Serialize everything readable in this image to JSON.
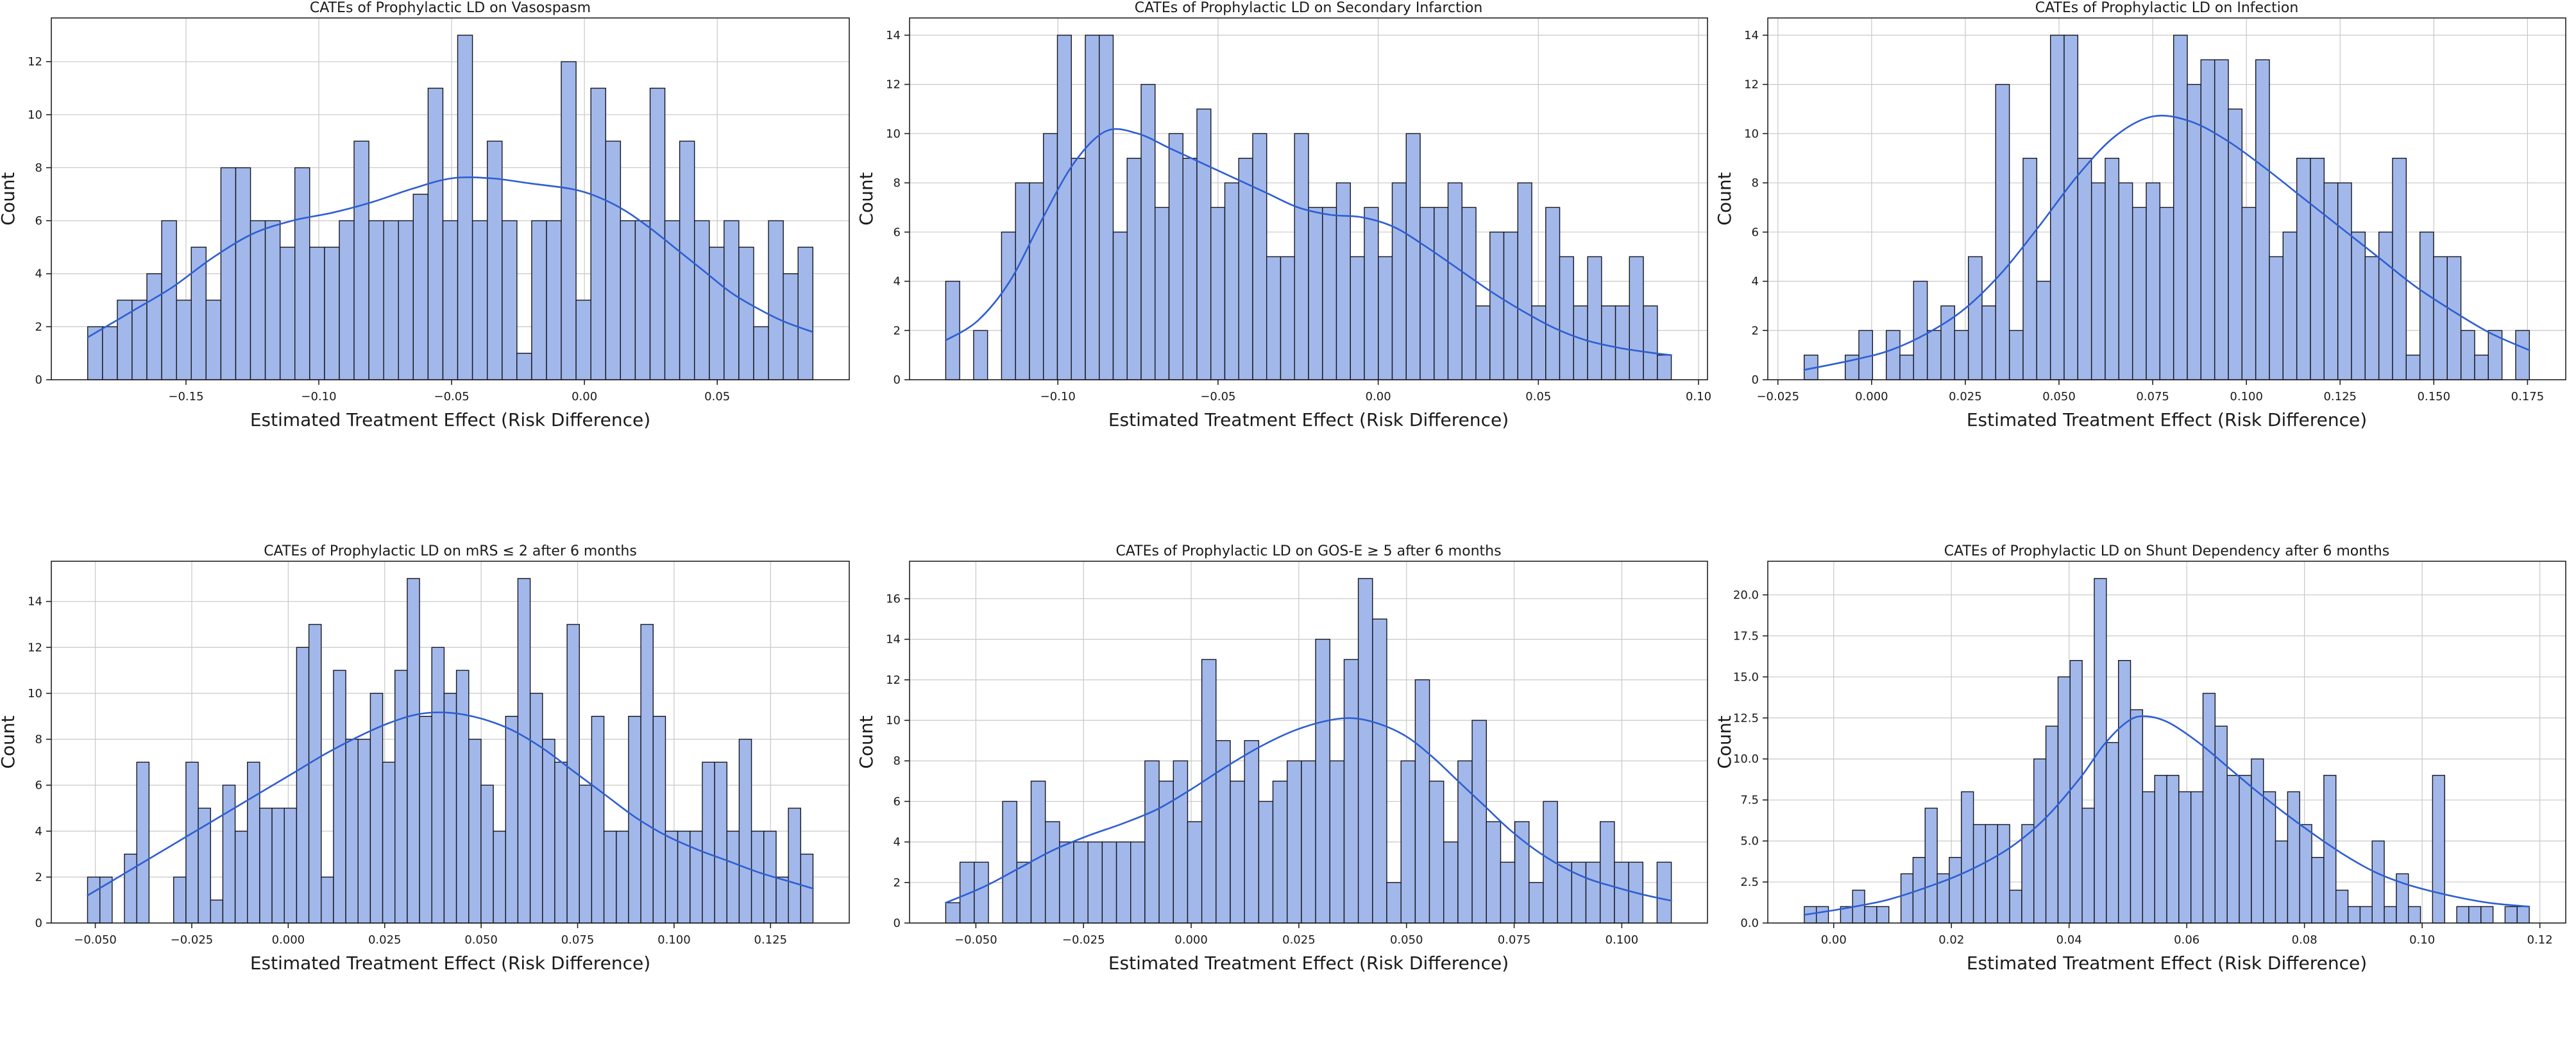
{
  "figure": {
    "background": "#ffffff",
    "bar_fill": "#a2b8ea",
    "bar_edge": "#16161f",
    "kde_color": "#2e5ed1",
    "grid_color": "#c8c8c8",
    "axis_color": "#222222",
    "tick_color": "#1a1a1a",
    "xlabel": "Estimated Treatment Effect (Risk Difference)",
    "ylabel": "Count"
  },
  "chart_data": [
    {
      "type": "bar",
      "subtype": "histogram-with-kde",
      "title": "CATEs of Prophylactic LD on Vasospasm",
      "xlabel": "Estimated Treatment Effect (Risk Difference)",
      "ylabel": "Count",
      "x_start": -0.187,
      "x_end": 0.086,
      "xlim": [
        -0.2007,
        0.0997
      ],
      "ylim": [
        0,
        13.65
      ],
      "grid": true,
      "values": [
        2,
        2,
        3,
        3,
        4,
        6,
        3,
        5,
        3,
        8,
        8,
        6,
        6,
        5,
        8,
        5,
        5,
        6,
        9,
        6,
        6,
        6,
        7,
        11,
        6,
        13,
        6,
        9,
        6,
        1,
        6,
        6,
        12,
        3,
        11,
        9,
        6,
        6,
        11,
        6,
        9,
        6,
        5,
        6,
        5,
        2,
        6,
        4,
        5
      ],
      "x_ticks": [
        -0.15,
        -0.1,
        -0.05,
        0.0,
        0.05
      ],
      "x_tick_labels": [
        "−0.15",
        "−0.10",
        "−0.05",
        "0.00",
        "0.05"
      ],
      "y_ticks": [
        0,
        2,
        4,
        6,
        8,
        10,
        12
      ],
      "y_tick_labels": [
        "0",
        "2",
        "4",
        "6",
        "8",
        "10",
        "12"
      ],
      "kde": [
        [
          -0.187,
          1.6
        ],
        [
          -0.17,
          2.6
        ],
        [
          -0.155,
          3.5
        ],
        [
          -0.14,
          4.6
        ],
        [
          -0.125,
          5.5
        ],
        [
          -0.11,
          6.0
        ],
        [
          -0.095,
          6.3
        ],
        [
          -0.08,
          6.7
        ],
        [
          -0.065,
          7.2
        ],
        [
          -0.05,
          7.6
        ],
        [
          -0.035,
          7.6
        ],
        [
          -0.02,
          7.4
        ],
        [
          -0.005,
          7.2
        ],
        [
          0.005,
          6.9
        ],
        [
          0.015,
          6.4
        ],
        [
          0.025,
          5.7
        ],
        [
          0.035,
          4.9
        ],
        [
          0.045,
          4.1
        ],
        [
          0.055,
          3.3
        ],
        [
          0.065,
          2.7
        ],
        [
          0.075,
          2.2
        ],
        [
          0.086,
          1.8
        ]
      ]
    },
    {
      "type": "bar",
      "subtype": "histogram-with-kde",
      "title": "CATEs of Prophylactic LD on Secondary Infarction",
      "xlabel": "Estimated Treatment Effect (Risk Difference)",
      "ylabel": "Count",
      "x_start": -0.135,
      "x_end": 0.0915,
      "xlim": [
        -0.1463,
        0.1028
      ],
      "ylim": [
        0,
        14.7
      ],
      "grid": true,
      "values": [
        4,
        0,
        2,
        0,
        6,
        8,
        8,
        10,
        14,
        9,
        14,
        14,
        6,
        9,
        12,
        7,
        10,
        9,
        11,
        7,
        8,
        9,
        10,
        5,
        5,
        10,
        7,
        7,
        8,
        5,
        7,
        5,
        8,
        10,
        7,
        7,
        8,
        7,
        3,
        6,
        6,
        8,
        3,
        7,
        5,
        3,
        5,
        3,
        3,
        5,
        3,
        1
      ],
      "x_ticks": [
        -0.1,
        -0.05,
        0.0,
        0.05,
        0.1
      ],
      "x_tick_labels": [
        "−0.10",
        "−0.05",
        "0.00",
        "0.05",
        "0.10"
      ],
      "y_ticks": [
        0,
        2,
        4,
        6,
        8,
        10,
        12,
        14
      ],
      "y_tick_labels": [
        "0",
        "2",
        "4",
        "6",
        "8",
        "10",
        "12",
        "14"
      ],
      "kde": [
        [
          -0.135,
          1.6
        ],
        [
          -0.125,
          2.4
        ],
        [
          -0.115,
          4.0
        ],
        [
          -0.105,
          6.5
        ],
        [
          -0.095,
          8.8
        ],
        [
          -0.085,
          10.1
        ],
        [
          -0.075,
          10.0
        ],
        [
          -0.065,
          9.4
        ],
        [
          -0.055,
          8.8
        ],
        [
          -0.045,
          8.2
        ],
        [
          -0.035,
          7.6
        ],
        [
          -0.025,
          7.0
        ],
        [
          -0.015,
          6.7
        ],
        [
          -0.005,
          6.6
        ],
        [
          0.005,
          6.2
        ],
        [
          0.015,
          5.4
        ],
        [
          0.025,
          4.5
        ],
        [
          0.035,
          3.6
        ],
        [
          0.045,
          2.8
        ],
        [
          0.055,
          2.1
        ],
        [
          0.065,
          1.6
        ],
        [
          0.075,
          1.3
        ],
        [
          0.085,
          1.1
        ],
        [
          0.0915,
          1.0
        ]
      ]
    },
    {
      "type": "bar",
      "subtype": "histogram-with-kde",
      "title": "CATEs of Prophylactic LD on Infection",
      "xlabel": "Estimated Treatment Effect (Risk Difference)",
      "ylabel": "Count",
      "x_start": -0.018,
      "x_end": 0.1755,
      "xlim": [
        -0.0277,
        0.1852
      ],
      "ylim": [
        0,
        14.7
      ],
      "grid": true,
      "values": [
        1,
        0,
        0,
        1,
        2,
        0,
        2,
        1,
        4,
        2,
        3,
        2,
        5,
        3,
        12,
        2,
        9,
        4,
        14,
        14,
        9,
        8,
        9,
        8,
        7,
        8,
        7,
        14,
        12,
        13,
        13,
        11,
        7,
        13,
        5,
        6,
        9,
        9,
        8,
        8,
        6,
        5,
        6,
        9,
        1,
        6,
        5,
        5,
        2,
        1,
        2,
        0,
        2
      ],
      "x_ticks": [
        -0.025,
        0.0,
        0.025,
        0.05,
        0.075,
        0.1,
        0.125,
        0.15,
        0.175
      ],
      "x_tick_labels": [
        "−0.025",
        "0.000",
        "0.025",
        "0.050",
        "0.075",
        "0.100",
        "0.125",
        "0.150",
        "0.175"
      ],
      "y_ticks": [
        0,
        2,
        4,
        6,
        8,
        10,
        12,
        14
      ],
      "y_tick_labels": [
        "0",
        "2",
        "4",
        "6",
        "8",
        "10",
        "12",
        "14"
      ],
      "kde": [
        [
          -0.018,
          0.4
        ],
        [
          -0.005,
          0.8
        ],
        [
          0.005,
          1.2
        ],
        [
          0.015,
          1.9
        ],
        [
          0.025,
          2.9
        ],
        [
          0.035,
          4.4
        ],
        [
          0.045,
          6.3
        ],
        [
          0.055,
          8.3
        ],
        [
          0.065,
          9.9
        ],
        [
          0.075,
          10.7
        ],
        [
          0.085,
          10.5
        ],
        [
          0.095,
          9.7
        ],
        [
          0.105,
          8.6
        ],
        [
          0.115,
          7.4
        ],
        [
          0.125,
          6.2
        ],
        [
          0.135,
          5.0
        ],
        [
          0.145,
          3.8
        ],
        [
          0.155,
          2.8
        ],
        [
          0.165,
          1.9
        ],
        [
          0.1755,
          1.2
        ]
      ]
    },
    {
      "type": "bar",
      "subtype": "histogram-with-kde",
      "title": "CATEs of Prophylactic LD on mRS ≤ 2 after 6 months",
      "xlabel": "Estimated Treatment Effect (Risk Difference)",
      "ylabel": "Count",
      "x_start": -0.052,
      "x_end": 0.136,
      "xlim": [
        -0.0614,
        0.1454
      ],
      "ylim": [
        0,
        15.75
      ],
      "grid": true,
      "values": [
        2,
        2,
        0,
        3,
        7,
        0,
        0,
        2,
        7,
        5,
        1,
        6,
        4,
        7,
        5,
        5,
        5,
        12,
        13,
        2,
        11,
        8,
        8,
        10,
        7,
        11,
        15,
        9,
        12,
        10,
        11,
        8,
        6,
        4,
        9,
        15,
        10,
        8,
        7,
        13,
        6,
        9,
        4,
        4,
        9,
        13,
        9,
        4,
        4,
        4,
        7,
        7,
        4,
        8,
        4,
        4,
        2,
        5,
        3
      ],
      "x_ticks": [
        -0.05,
        -0.025,
        0.0,
        0.025,
        0.05,
        0.075,
        0.1,
        0.125
      ],
      "x_tick_labels": [
        "−0.050",
        "−0.025",
        "0.000",
        "0.025",
        "0.050",
        "0.075",
        "0.100",
        "0.125"
      ],
      "y_ticks": [
        0,
        2,
        4,
        6,
        8,
        10,
        12,
        14
      ],
      "y_tick_labels": [
        "0",
        "2",
        "4",
        "6",
        "8",
        "10",
        "12",
        "14"
      ],
      "kde": [
        [
          -0.052,
          1.2
        ],
        [
          -0.045,
          1.9
        ],
        [
          -0.038,
          2.6
        ],
        [
          -0.03,
          3.4
        ],
        [
          -0.022,
          4.2
        ],
        [
          -0.014,
          5.0
        ],
        [
          -0.006,
          5.8
        ],
        [
          0.002,
          6.6
        ],
        [
          0.01,
          7.4
        ],
        [
          0.018,
          8.1
        ],
        [
          0.026,
          8.7
        ],
        [
          0.034,
          9.1
        ],
        [
          0.042,
          9.15
        ],
        [
          0.05,
          8.9
        ],
        [
          0.058,
          8.4
        ],
        [
          0.066,
          7.6
        ],
        [
          0.074,
          6.6
        ],
        [
          0.082,
          5.6
        ],
        [
          0.09,
          4.6
        ],
        [
          0.098,
          3.8
        ],
        [
          0.106,
          3.2
        ],
        [
          0.114,
          2.7
        ],
        [
          0.122,
          2.2
        ],
        [
          0.13,
          1.8
        ],
        [
          0.136,
          1.5
        ]
      ]
    },
    {
      "type": "bar",
      "subtype": "histogram-with-kde",
      "title": "CATEs of Prophylactic LD on GOS-E ≥ 5 after 6 months",
      "xlabel": "Estimated Treatment Effect (Risk Difference)",
      "ylabel": "Count",
      "x_start": -0.057,
      "x_end": 0.1115,
      "xlim": [
        -0.0654,
        0.1199
      ],
      "ylim": [
        0,
        17.85
      ],
      "grid": true,
      "values": [
        1,
        3,
        3,
        0,
        6,
        3,
        7,
        5,
        4,
        4,
        4,
        4,
        4,
        4,
        8,
        7,
        8,
        5,
        13,
        9,
        7,
        9,
        6,
        7,
        8,
        8,
        14,
        8,
        13,
        17,
        15,
        2,
        8,
        12,
        7,
        4,
        8,
        10,
        5,
        3,
        5,
        2,
        6,
        3,
        3,
        3,
        5,
        3,
        3,
        0,
        3
      ],
      "x_ticks": [
        -0.05,
        -0.025,
        0.0,
        0.025,
        0.05,
        0.075,
        0.1
      ],
      "x_tick_labels": [
        "−0.050",
        "−0.025",
        "0.000",
        "0.025",
        "0.050",
        "0.075",
        "0.100"
      ],
      "y_ticks": [
        0,
        2,
        4,
        6,
        8,
        10,
        12,
        14,
        16
      ],
      "y_tick_labels": [
        "0",
        "2",
        "4",
        "6",
        "8",
        "10",
        "12",
        "14",
        "16"
      ],
      "kde": [
        [
          -0.057,
          1.0
        ],
        [
          -0.048,
          1.8
        ],
        [
          -0.04,
          2.7
        ],
        [
          -0.032,
          3.6
        ],
        [
          -0.024,
          4.3
        ],
        [
          -0.016,
          4.9
        ],
        [
          -0.008,
          5.6
        ],
        [
          0.0,
          6.6
        ],
        [
          0.008,
          7.7
        ],
        [
          0.016,
          8.7
        ],
        [
          0.024,
          9.5
        ],
        [
          0.032,
          10.0
        ],
        [
          0.038,
          10.1
        ],
        [
          0.044,
          9.8
        ],
        [
          0.05,
          9.2
        ],
        [
          0.056,
          8.2
        ],
        [
          0.062,
          7.0
        ],
        [
          0.068,
          5.8
        ],
        [
          0.074,
          4.6
        ],
        [
          0.08,
          3.6
        ],
        [
          0.086,
          2.8
        ],
        [
          0.092,
          2.2
        ],
        [
          0.098,
          1.8
        ],
        [
          0.105,
          1.4
        ],
        [
          0.1115,
          1.1
        ]
      ]
    },
    {
      "type": "bar",
      "subtype": "histogram-with-kde",
      "title": "CATEs of Prophylactic LD on Shunt Dependency after 6 months",
      "xlabel": "Estimated Treatment Effect (Risk Difference)",
      "ylabel": "Count",
      "x_start": -0.005,
      "x_end": 0.1182,
      "xlim": [
        -0.0112,
        0.1244
      ],
      "ylim": [
        0,
        22.05
      ],
      "grid": true,
      "values": [
        1,
        1,
        0,
        1,
        2,
        1,
        1,
        0,
        3,
        4,
        7,
        3,
        4,
        8,
        6,
        6,
        6,
        2,
        6,
        10,
        12,
        15,
        16,
        7,
        21,
        11,
        16,
        13,
        8,
        9,
        9,
        8,
        8,
        14,
        12,
        9,
        9,
        10,
        8,
        5,
        8,
        6,
        4,
        9,
        2,
        1,
        1,
        5,
        1,
        3,
        1,
        0,
        9,
        0,
        1,
        1,
        1,
        0,
        1,
        1
      ],
      "x_ticks": [
        0.0,
        0.02,
        0.04,
        0.06,
        0.08,
        0.1,
        0.12
      ],
      "x_tick_labels": [
        "0.00",
        "0.02",
        "0.04",
        "0.06",
        "0.08",
        "0.10",
        "0.12"
      ],
      "y_ticks": [
        0,
        2.5,
        5,
        7.5,
        10,
        12.5,
        15,
        17.5,
        20
      ],
      "y_tick_labels": [
        "0.0",
        "2.5",
        "5.0",
        "7.5",
        "10.0",
        "12.5",
        "15.0",
        "17.5",
        "20.0"
      ],
      "kde": [
        [
          -0.005,
          0.5
        ],
        [
          0.002,
          0.9
        ],
        [
          0.009,
          1.4
        ],
        [
          0.016,
          2.2
        ],
        [
          0.023,
          3.2
        ],
        [
          0.03,
          4.6
        ],
        [
          0.036,
          6.4
        ],
        [
          0.042,
          8.9
        ],
        [
          0.046,
          10.9
        ],
        [
          0.05,
          12.3
        ],
        [
          0.053,
          12.6
        ],
        [
          0.057,
          12.2
        ],
        [
          0.062,
          11.0
        ],
        [
          0.067,
          9.5
        ],
        [
          0.072,
          8.0
        ],
        [
          0.077,
          6.6
        ],
        [
          0.082,
          5.3
        ],
        [
          0.087,
          4.1
        ],
        [
          0.092,
          3.1
        ],
        [
          0.097,
          2.4
        ],
        [
          0.102,
          1.9
        ],
        [
          0.107,
          1.5
        ],
        [
          0.112,
          1.2
        ],
        [
          0.1182,
          1.0
        ]
      ]
    }
  ]
}
